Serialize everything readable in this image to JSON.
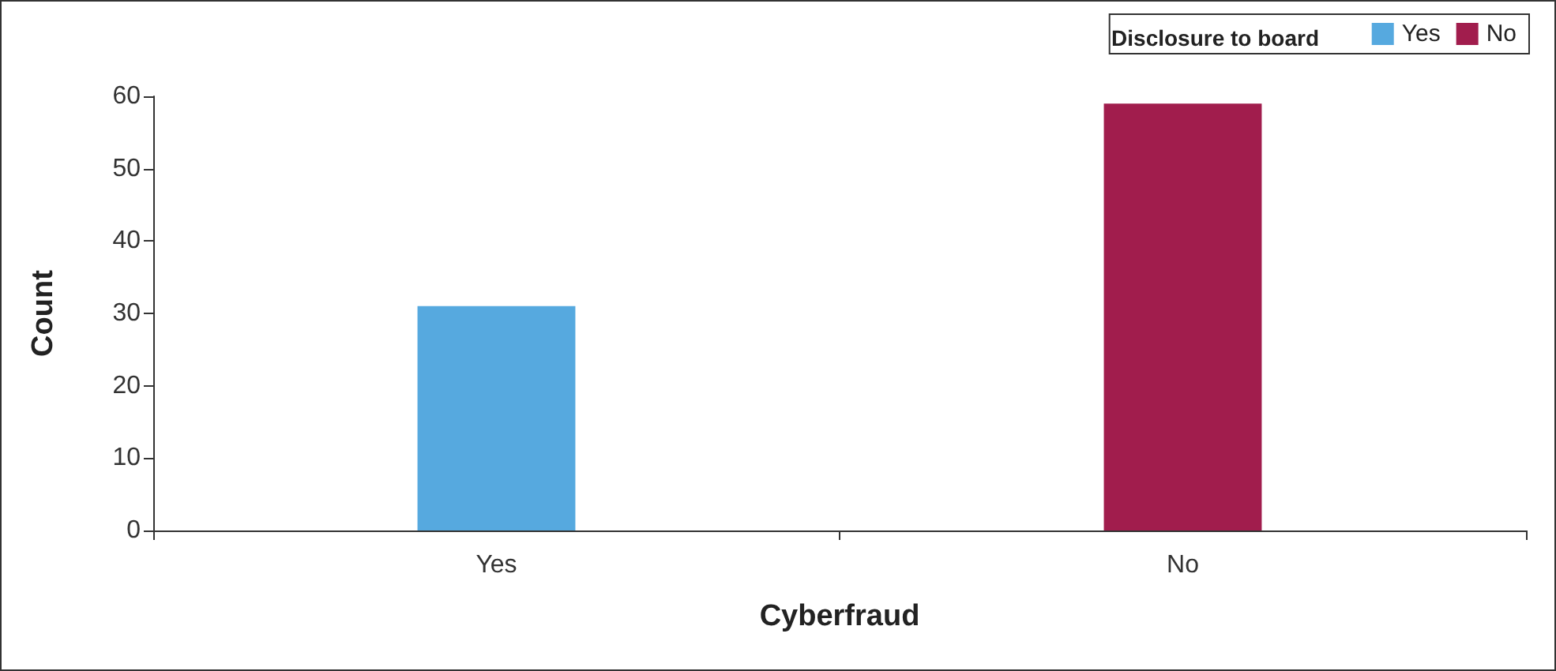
{
  "chart_data": {
    "type": "bar",
    "xlabel": "Cyberfraud",
    "ylabel": "Count",
    "legend_title": "Disclosure to board",
    "categories": [
      "Yes",
      "No"
    ],
    "series": [
      {
        "name": "Yes",
        "color": "#56a9df",
        "values": [
          31,
          null
        ]
      },
      {
        "name": "No",
        "color": "#a11d4d",
        "values": [
          null,
          59
        ]
      }
    ],
    "ylim": [
      0,
      60
    ],
    "yticks": [
      0,
      10,
      20,
      30,
      40,
      50,
      60
    ],
    "grid": false,
    "legend": "top right"
  }
}
